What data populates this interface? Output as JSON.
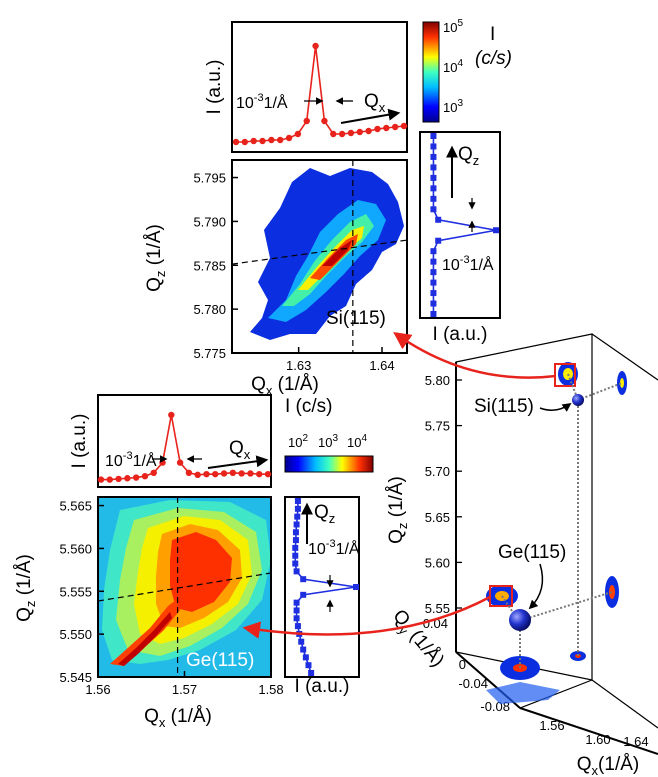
{
  "chart_data": [
    {
      "id": "si-map",
      "type": "heatmap",
      "label": "Si(115)",
      "xlabel_main": "Q",
      "xlabel_sub": "x",
      "xlabel_unit": " (1/Å)",
      "ylabel_main": "Q",
      "ylabel_sub": "z",
      "ylabel_unit": " (1/Å)",
      "xlim": [
        1.622,
        1.643
      ],
      "ylim": [
        5.775,
        5.797
      ],
      "x_ticks": [
        "1.63",
        "1.64"
      ],
      "y_ticks": [
        "5.775",
        "5.780",
        "5.785",
        "5.790",
        "5.795"
      ],
      "crosshair": {
        "x": 1.6365,
        "y": 5.7865
      },
      "colorbar": {
        "label": "I",
        "unit": "(c/s)",
        "ticks": [
          "10",
          "10",
          "10"
        ],
        "tick_exp": [
          "5",
          "4",
          "3"
        ]
      }
    },
    {
      "id": "si-qx-profile",
      "type": "line",
      "ylabel": "I (a.u.)",
      "annotation_width_base": "10",
      "annotation_width_exp": "-3",
      "annotation_width_unit": "1/Å",
      "arrow_label_main": "Q",
      "arrow_label_sub": "x",
      "points": [
        [
          0,
          0.04
        ],
        [
          1,
          0.04
        ],
        [
          2,
          0.05
        ],
        [
          3,
          0.05
        ],
        [
          4,
          0.06
        ],
        [
          5,
          0.06
        ],
        [
          6,
          0.08
        ],
        [
          7,
          0.12
        ],
        [
          8,
          0.25
        ],
        [
          9,
          1.0
        ],
        [
          10,
          0.25
        ],
        [
          11,
          0.12
        ],
        [
          12,
          0.12
        ],
        [
          13,
          0.13
        ],
        [
          14,
          0.14
        ],
        [
          15,
          0.15
        ],
        [
          16,
          0.17
        ],
        [
          17,
          0.18
        ],
        [
          18,
          0.19
        ],
        [
          19,
          0.2
        ]
      ]
    },
    {
      "id": "si-qz-profile",
      "type": "line",
      "xlabel": "I (a.u.)",
      "annotation_width_base": "10",
      "annotation_width_exp": "-3",
      "annotation_width_unit": "1/Å",
      "arrow_label_main": "Q",
      "arrow_label_sub": "z",
      "points": [
        [
          0,
          0.08
        ],
        [
          1,
          0.08
        ],
        [
          2,
          0.08
        ],
        [
          3,
          0.08
        ],
        [
          4,
          0.08
        ],
        [
          5,
          0.08
        ],
        [
          6,
          0.08
        ],
        [
          7,
          0.08
        ],
        [
          8,
          0.15
        ],
        [
          9,
          1.0
        ],
        [
          10,
          0.15
        ],
        [
          11,
          0.08
        ],
        [
          12,
          0.08
        ],
        [
          13,
          0.08
        ],
        [
          14,
          0.08
        ],
        [
          15,
          0.08
        ],
        [
          16,
          0.08
        ],
        [
          17,
          0.08
        ]
      ]
    },
    {
      "id": "ge-map",
      "type": "heatmap",
      "label": "Ge(115)",
      "xlabel_main": "Q",
      "xlabel_sub": "x",
      "xlabel_unit": " (1/Å)",
      "ylabel_main": "Q",
      "ylabel_sub": "z",
      "ylabel_unit": " (1/Å)",
      "xlim": [
        1.56,
        1.58
      ],
      "ylim": [
        5.545,
        5.566
      ],
      "x_ticks": [
        "1.56",
        "1.57",
        "1.58"
      ],
      "y_ticks": [
        "5.545",
        "5.550",
        "5.555",
        "5.560",
        "5.565"
      ],
      "crosshair": {
        "x": 1.5692,
        "y": 5.5555
      },
      "colorbar": {
        "label": "I (c/s)",
        "ticks": [
          "10",
          "10",
          "10"
        ],
        "tick_exp": [
          "2",
          "3",
          "4"
        ]
      }
    },
    {
      "id": "ge-qx-profile",
      "type": "line",
      "ylabel": "I (a.u.)",
      "annotation_width_base": "10",
      "annotation_width_exp": "-3",
      "annotation_width_unit": "1/Å",
      "arrow_label_main": "Q",
      "arrow_label_sub": "x",
      "points": [
        [
          0,
          0.05
        ],
        [
          1,
          0.05
        ],
        [
          2,
          0.06
        ],
        [
          3,
          0.07
        ],
        [
          4,
          0.08
        ],
        [
          5,
          0.1
        ],
        [
          6,
          0.15
        ],
        [
          7,
          0.3
        ],
        [
          8,
          1.0
        ],
        [
          9,
          0.3
        ],
        [
          10,
          0.15
        ],
        [
          11,
          0.12
        ],
        [
          12,
          0.13
        ],
        [
          13,
          0.13
        ],
        [
          14,
          0.14
        ],
        [
          15,
          0.15
        ],
        [
          16,
          0.14
        ],
        [
          17,
          0.14
        ],
        [
          18,
          0.13
        ],
        [
          19,
          0.13
        ]
      ]
    },
    {
      "id": "ge-qz-profile",
      "type": "line",
      "xlabel": "I (a.u.)",
      "annotation_width_base": "10",
      "annotation_width_exp": "-3",
      "annotation_width_unit": "1/Å",
      "arrow_label_main": "Q",
      "arrow_label_sub": "z",
      "points": [
        [
          0,
          0.12
        ],
        [
          1,
          0.12
        ],
        [
          2,
          0.11
        ],
        [
          3,
          0.1
        ],
        [
          4,
          0.09
        ],
        [
          5,
          0.09
        ],
        [
          6,
          0.08
        ],
        [
          7,
          0.08
        ],
        [
          8,
          0.08
        ],
        [
          9,
          0.1
        ],
        [
          10,
          0.2
        ],
        [
          11,
          1.0
        ],
        [
          12,
          0.2
        ],
        [
          13,
          0.1
        ],
        [
          14,
          0.1
        ],
        [
          15,
          0.1
        ],
        [
          16,
          0.12
        ],
        [
          17,
          0.14
        ],
        [
          18,
          0.17
        ],
        [
          19,
          0.2
        ],
        [
          20,
          0.24
        ],
        [
          21,
          0.28
        ],
        [
          22,
          0.32
        ]
      ]
    },
    {
      "id": "rsm-3d",
      "type": "scatter",
      "z_label_main": "Q",
      "z_label_sub": "z",
      "z_label_unit": " (1/Å)",
      "y_label_main": "Q",
      "y_label_sub": "y",
      "y_label_unit": " (1/Å)",
      "x_label_main": "Q",
      "x_label_sub": "x",
      "x_label_unit": "(1/Å)",
      "qz_ticks": [
        "5.55",
        "5.60",
        "5.65",
        "5.70",
        "5.75",
        "5.80"
      ],
      "qy_ticks": [
        "0.04",
        "0",
        "-0.04",
        "-0.08"
      ],
      "qx_ticks": [
        "1.56",
        "1.60",
        "1.64"
      ],
      "points": [
        {
          "label": "Si(115)",
          "qx": 1.636,
          "qy": 0.0,
          "qz": 5.787
        },
        {
          "label": "Ge(115)",
          "qx": 1.569,
          "qy": 0.0,
          "qz": 5.556
        }
      ]
    }
  ]
}
